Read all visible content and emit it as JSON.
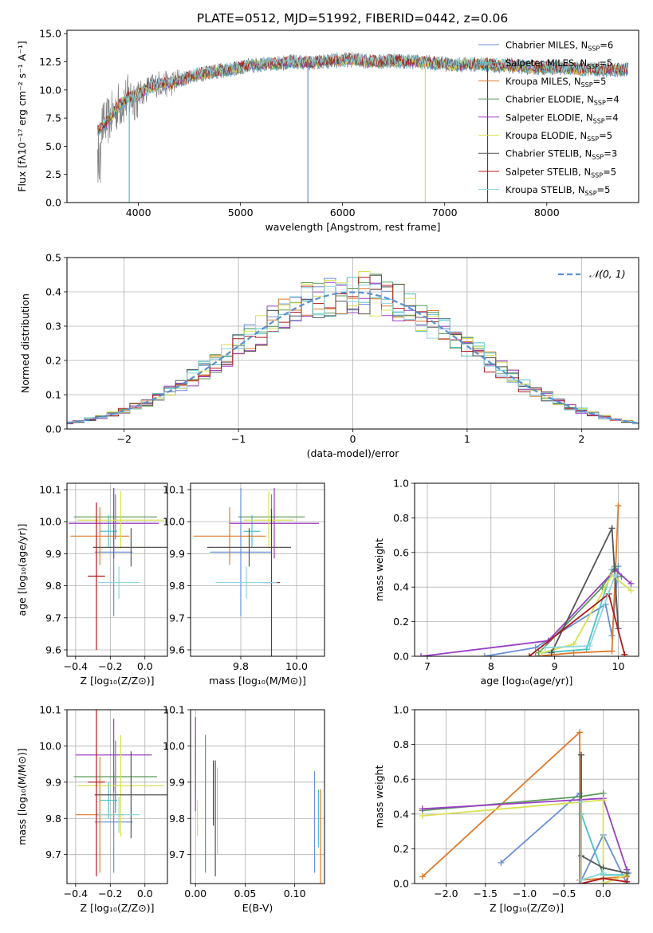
{
  "figure": {
    "title": "PLATE=0512, MJD=51992, FIBERID=0442, z=0.06"
  },
  "colors": [
    "#6a8fd6",
    "#4cc3c3",
    "#de7a2a",
    "#5a9a5a",
    "#9a3fc3",
    "#d8e050",
    "#555555",
    "#b01818",
    "#8ad6e0"
  ],
  "chart_data": [
    {
      "id": "spectrum",
      "type": "line",
      "xlabel": "wavelength [Angstrom, rest frame]",
      "ylabel": "Flux [fλ10⁻¹⁷ erg cm⁻² s⁻¹ A⁻¹]",
      "xlim": [
        3300,
        8900
      ],
      "ylim": [
        0,
        15.3
      ],
      "xticks": [
        4000,
        5000,
        6000,
        7000,
        8000
      ],
      "yticks": [
        0.0,
        2.5,
        5.0,
        7.5,
        10.0,
        12.5,
        15.0
      ],
      "ytick_labels": [
        "0.0",
        "2.5",
        "5.0",
        "7.5",
        "10.0",
        "12.5",
        "15.0"
      ],
      "grid": false,
      "legend_placement": "right",
      "data_envelope": {
        "x": [
          3600,
          3700,
          3800,
          3900,
          4000,
          4100,
          4200,
          4300,
          4500,
          4700,
          4900,
          5100,
          5300,
          5500,
          5700,
          5900,
          6100,
          6300,
          6500,
          6700,
          6900,
          7100,
          7300,
          7500,
          7700,
          7900,
          8100,
          8300,
          8500,
          8800
        ],
        "y": [
          6.5,
          7.2,
          8.6,
          9.3,
          9.5,
          10.2,
          10.6,
          10.5,
          11.2,
          11.6,
          11.8,
          12.2,
          12.3,
          12.5,
          12.4,
          12.6,
          12.7,
          12.5,
          12.6,
          12.5,
          12.4,
          12.2,
          12.3,
          12.2,
          12.1,
          12.0,
          12.0,
          11.9,
          11.8,
          11.8
        ]
      },
      "legend": [
        {
          "main": "Chabrier MILES, N",
          "sub": "SSP",
          "tail": "=6"
        },
        {
          "main": "Salpeter MILES, N",
          "sub": "SSP",
          "tail": "=5"
        },
        {
          "main": "Kroupa MILES, N",
          "sub": "SSP",
          "tail": "=5"
        },
        {
          "main": "Chabrier ELODIE, N",
          "sub": "SSP",
          "tail": "=4"
        },
        {
          "main": "Salpeter ELODIE, N",
          "sub": "SSP",
          "tail": "=4"
        },
        {
          "main": "Kroupa ELODIE, N",
          "sub": "SSP",
          "tail": "=5"
        },
        {
          "main": "Chabrier STELIB, N",
          "sub": "SSP",
          "tail": "=3"
        },
        {
          "main": "Salpeter STELIB, N",
          "sub": "SSP",
          "tail": "=5"
        },
        {
          "main": "Kroupa STELIB, N",
          "sub": "SSP",
          "tail": "=5"
        }
      ]
    },
    {
      "id": "residuals",
      "type": "bar",
      "xlabel": "(data-model)/error",
      "ylabel": "Normed distribution",
      "xlim": [
        -2.5,
        2.5
      ],
      "ylim": [
        0,
        0.5
      ],
      "xticks": [
        -2,
        -1,
        0,
        1,
        2
      ],
      "xtick_labels": [
        "−2",
        "−1",
        "0",
        "1",
        "2"
      ],
      "yticks": [
        0.0,
        0.1,
        0.2,
        0.3,
        0.4,
        0.5
      ],
      "ytick_labels": [
        "0.0",
        "0.1",
        "0.2",
        "0.3",
        "0.4",
        "0.5"
      ],
      "grid": true,
      "legend_placement": "top-right",
      "legend_label": "𝒩(0, 1)",
      "bin_width": 0.1,
      "reference_curve": "normal(0,1)"
    },
    {
      "id": "age-vs-Z",
      "type": "scatter",
      "xlabel": "Z [log₁₀(Z/Z⊙)]",
      "ylabel": "age  [log₁₀(age/yr)]",
      "xlim": [
        -0.45,
        0.13
      ],
      "ylim": [
        9.58,
        10.12
      ],
      "xticks": [
        -0.4,
        -0.2,
        0.0
      ],
      "xtick_labels": [
        "−0.4",
        "−0.2",
        "0.0"
      ],
      "yticks": [
        9.6,
        9.7,
        9.8,
        9.9,
        10.0,
        10.1
      ],
      "ytick_labels": [
        "9.6",
        "9.7",
        "9.8",
        "9.9",
        "10.0",
        "10.1"
      ],
      "grid": true,
      "points": [
        {
          "x": -0.18,
          "xerr": 0.11,
          "y": 9.905,
          "yerr": 0.2
        },
        {
          "x": -0.21,
          "xerr": 0.05,
          "y": 9.97,
          "yerr": 0.05
        },
        {
          "x": -0.26,
          "xerr": 0.17,
          "y": 9.955,
          "yerr": 0.09
        },
        {
          "x": -0.17,
          "xerr": 0.24,
          "y": 10.015,
          "yerr": 0.07
        },
        {
          "x": -0.18,
          "xerr": 0.26,
          "y": 9.995,
          "yerr": 0.11
        },
        {
          "x": -0.14,
          "xerr": 0.25,
          "y": 10.005,
          "yerr": 0.09
        },
        {
          "x": -0.08,
          "xerr": 0.22,
          "y": 9.92,
          "yerr": 0.06
        },
        {
          "x": -0.28,
          "xerr": 0.05,
          "y": 9.83,
          "yerr": 0.23
        },
        {
          "x": -0.15,
          "xerr": 0.12,
          "y": 9.81,
          "yerr": 0.05
        }
      ]
    },
    {
      "id": "age-vs-mass",
      "type": "scatter",
      "xlabel": "mass [log₁₀(M/M⊙)]",
      "ylabel": "",
      "xlim": [
        9.62,
        10.1
      ],
      "ylim": [
        9.58,
        10.12
      ],
      "xticks": [
        9.8,
        10.0
      ],
      "xtick_labels": [
        "9.8",
        "10.0"
      ],
      "yticks": [
        9.6,
        9.7,
        9.8,
        9.9,
        10.0,
        10.1
      ],
      "ytick_labels": [
        "9.6",
        "9.7",
        "9.8",
        "9.9",
        "10.0",
        "10.1"
      ],
      "grid": true,
      "points": [
        {
          "x": 9.8,
          "xerr": 0.11,
          "y": 9.905,
          "yerr": 0.2
        },
        {
          "x": 9.84,
          "xerr": 0.03,
          "y": 9.97,
          "yerr": 0.05
        },
        {
          "x": 9.76,
          "xerr": 0.13,
          "y": 9.955,
          "yerr": 0.09
        },
        {
          "x": 9.91,
          "xerr": 0.12,
          "y": 10.015,
          "yerr": 0.07
        },
        {
          "x": 9.92,
          "xerr": 0.16,
          "y": 9.995,
          "yerr": 0.11
        },
        {
          "x": 9.9,
          "xerr": 0.09,
          "y": 10.005,
          "yerr": 0.09
        },
        {
          "x": 9.83,
          "xerr": 0.15,
          "y": 9.92,
          "yerr": 0.06
        },
        {
          "x": 9.91,
          "xerr": 0.03,
          "y": 9.81,
          "yerr": 0.23
        },
        {
          "x": 9.82,
          "xerr": 0.11,
          "y": 9.81,
          "yerr": 0.05
        }
      ]
    },
    {
      "id": "mass-weight-vs-age",
      "type": "line",
      "xlabel": "age  [log₁₀(age/yr)]",
      "ylabel": "mass weight",
      "xlim": [
        6.8,
        10.32
      ],
      "ylim": [
        0,
        1.0
      ],
      "xticks": [
        7,
        8,
        9,
        10
      ],
      "xtick_labels": [
        "7",
        "8",
        "9",
        "10"
      ],
      "yticks": [
        0.0,
        0.2,
        0.4,
        0.6,
        0.8,
        1.0
      ],
      "ytick_labels": [
        "0.0",
        "0.2",
        "0.4",
        "0.6",
        "0.8",
        "1.0"
      ],
      "grid": true,
      "series": [
        {
          "x": [
            7.9,
            8.7,
            9.8,
            9.9,
            10.0
          ],
          "y": [
            0.0,
            0.05,
            0.3,
            0.12,
            0.52
          ]
        },
        {
          "x": [
            8.8,
            9.5,
            9.9
          ],
          "y": [
            0.02,
            0.04,
            0.5
          ]
        },
        {
          "x": [
            8.7,
            9.3,
            9.9,
            10.0
          ],
          "y": [
            0.0,
            0.02,
            0.03,
            0.87
          ]
        },
        {
          "x": [
            8.75,
            9.75,
            9.95,
            10.05
          ],
          "y": [
            0.02,
            0.4,
            0.52,
            0.46
          ]
        },
        {
          "x": [
            6.9,
            8.9,
            9.95,
            10.2
          ],
          "y": [
            0.0,
            0.09,
            0.5,
            0.42
          ]
        },
        {
          "x": [
            8.8,
            9.3,
            9.9,
            10.2
          ],
          "y": [
            0.02,
            0.07,
            0.47,
            0.38
          ]
        },
        {
          "x": [
            8.95,
            9.9,
            10.0
          ],
          "y": [
            0.02,
            0.74,
            0.16
          ]
        },
        {
          "x": [
            8.6,
            9.85,
            10.1
          ],
          "y": [
            0.0,
            0.36,
            0.01
          ]
        },
        {
          "x": [
            8.85,
            9.55,
            9.95
          ],
          "y": [
            0.05,
            0.06,
            0.47
          ]
        }
      ]
    },
    {
      "id": "mass-vs-Z",
      "type": "scatter",
      "xlabel": "Z [log₁₀(Z/Z⊙)]",
      "ylabel": "mass [log₁₀(M/M⊙)]",
      "xlim": [
        -0.45,
        0.13
      ],
      "ylim": [
        9.62,
        10.1
      ],
      "xticks": [
        -0.4,
        -0.2,
        0.0
      ],
      "xtick_labels": [
        "−0.4",
        "−0.2",
        "0.0"
      ],
      "yticks": [
        9.7,
        9.8,
        9.9,
        10.0,
        10.1
      ],
      "ytick_labels": [
        "9.7",
        "9.8",
        "9.9",
        "10.0",
        "10.1"
      ],
      "grid": true,
      "points": [
        {
          "x": -0.18,
          "xerr": 0.11,
          "y": 9.79,
          "yerr": 0.14
        },
        {
          "x": -0.21,
          "xerr": 0.05,
          "y": 9.85,
          "yerr": 0.05
        },
        {
          "x": -0.26,
          "xerr": 0.14,
          "y": 9.81,
          "yerr": 0.16
        },
        {
          "x": -0.17,
          "xerr": 0.24,
          "y": 9.915,
          "yerr": 0.1
        },
        {
          "x": -0.18,
          "xerr": 0.22,
          "y": 9.975,
          "yerr": 0.1
        },
        {
          "x": -0.14,
          "xerr": 0.25,
          "y": 9.89,
          "yerr": 0.14
        },
        {
          "x": -0.08,
          "xerr": 0.21,
          "y": 9.865,
          "yerr": 0.12
        },
        {
          "x": -0.28,
          "xerr": 0.05,
          "y": 9.9,
          "yerr": 0.26
        },
        {
          "x": -0.15,
          "xerr": 0.12,
          "y": 9.81,
          "yerr": 0.05
        }
      ]
    },
    {
      "id": "mass-vs-EBV",
      "type": "scatter",
      "xlabel": "E(B-V)",
      "ylabel": "",
      "xlim": [
        -0.005,
        0.13
      ],
      "ylim": [
        9.62,
        10.1
      ],
      "xticks": [
        0.0,
        0.05,
        0.1
      ],
      "xtick_labels": [
        "0.00",
        "0.05",
        "0.10"
      ],
      "yticks": [
        9.7,
        9.8,
        9.9,
        10.0,
        10.1
      ],
      "ytick_labels": [
        "9.7",
        "9.8",
        "9.9",
        "10.0",
        "10.1"
      ],
      "grid": true,
      "points": [
        {
          "x": 0.12,
          "xerr": 0,
          "y": 9.79,
          "yerr": 0.14
        },
        {
          "x": 0.124,
          "xerr": 0,
          "y": 9.8,
          "yerr": 0.08
        },
        {
          "x": 0.126,
          "xerr": 0,
          "y": 9.75,
          "yerr": 0.13
        },
        {
          "x": 0.01,
          "xerr": 0,
          "y": 9.84,
          "yerr": 0.19
        },
        {
          "x": 0.0,
          "xerr": 0,
          "y": 9.95,
          "yerr": 0.13
        },
        {
          "x": 0.002,
          "xerr": 0,
          "y": 9.8,
          "yerr": 0.05
        },
        {
          "x": 0.02,
          "xerr": 0,
          "y": 9.8,
          "yerr": 0.16
        },
        {
          "x": 0.018,
          "xerr": 0,
          "y": 9.87,
          "yerr": 0.09
        },
        {
          "x": 0.022,
          "xerr": 0,
          "y": 9.82,
          "yerr": 0.12
        }
      ]
    },
    {
      "id": "mass-weight-vs-Z",
      "type": "line",
      "xlabel": "Z [log₁₀(Z/Z⊙)]",
      "ylabel": "mass weight",
      "xlim": [
        -2.4,
        0.45
      ],
      "ylim": [
        0,
        1.0
      ],
      "xticks": [
        -2.0,
        -1.5,
        -1.0,
        -0.5,
        0.0
      ],
      "xtick_labels": [
        "−2.0",
        "−1.5",
        "−1.0",
        "−0.5",
        "0.0"
      ],
      "yticks": [
        0.0,
        0.2,
        0.4,
        0.6,
        0.8,
        1.0
      ],
      "ytick_labels": [
        "0.0",
        "0.2",
        "0.4",
        "0.6",
        "0.8",
        "1.0"
      ],
      "grid": true,
      "series": [
        {
          "x": [
            -1.3,
            -0.3,
            -0.3,
            0.0,
            0.3,
            0.32
          ],
          "y": [
            0.12,
            0.52,
            0.0,
            0.28,
            0.0,
            0.06
          ]
        },
        {
          "x": [
            -0.28,
            0.0,
            0.3
          ],
          "y": [
            0.4,
            0.05,
            0.05
          ]
        },
        {
          "x": [
            -2.3,
            -0.3,
            -0.3,
            0.3
          ],
          "y": [
            0.04,
            0.87,
            0.02,
            0.04
          ]
        },
        {
          "x": [
            -2.3,
            -0.3,
            0.0
          ],
          "y": [
            0.42,
            0.5,
            0.52
          ]
        },
        {
          "x": [
            -2.3,
            0.0,
            0.3
          ],
          "y": [
            0.43,
            0.49,
            0.08
          ]
        },
        {
          "x": [
            -2.3,
            0.0,
            0.0,
            0.3
          ],
          "y": [
            0.39,
            0.48,
            0.0,
            0.05
          ]
        },
        {
          "x": [
            -0.28,
            -0.28,
            0.0,
            0.3
          ],
          "y": [
            0.74,
            0.16,
            0.09,
            0.06
          ]
        },
        {
          "x": [
            -0.28,
            0.0,
            0.3
          ],
          "y": [
            0.0,
            0.03,
            0.01
          ]
        },
        {
          "x": [
            -0.28,
            -0.28,
            0.0
          ],
          "y": [
            0.47,
            0.02,
            0.06
          ]
        }
      ]
    }
  ]
}
